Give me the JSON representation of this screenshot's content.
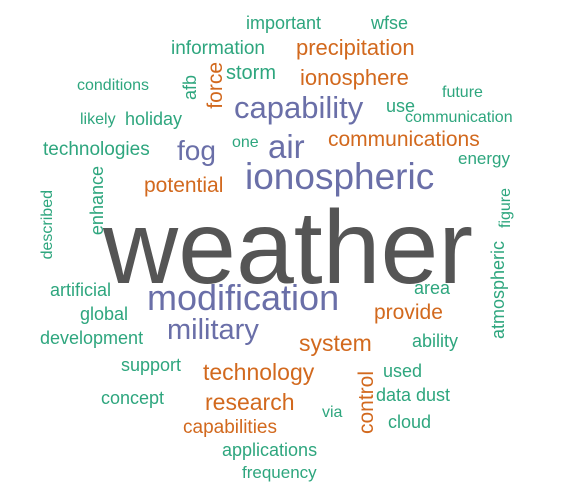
{
  "palette": {
    "dark_gray": "#555555",
    "slate_blue": "#6a6fa8",
    "orange": "#d2691e",
    "teal": "#2ea67e"
  },
  "words": [
    {
      "text": "weather",
      "color": "dark_gray",
      "vertical": false
    },
    {
      "text": "modification",
      "color": "slate_blue",
      "vertical": false
    },
    {
      "text": "ionospheric",
      "color": "slate_blue",
      "vertical": false
    },
    {
      "text": "military",
      "color": "slate_blue",
      "vertical": false
    },
    {
      "text": "capability",
      "color": "slate_blue",
      "vertical": false
    },
    {
      "text": "air",
      "color": "slate_blue",
      "vertical": false
    },
    {
      "text": "fog",
      "color": "slate_blue",
      "vertical": false
    },
    {
      "text": "communications",
      "color": "orange",
      "vertical": false
    },
    {
      "text": "precipitation",
      "color": "orange",
      "vertical": false
    },
    {
      "text": "ionosphere",
      "color": "orange",
      "vertical": false
    },
    {
      "text": "potential",
      "color": "orange",
      "vertical": false
    },
    {
      "text": "force",
      "color": "orange",
      "vertical": true
    },
    {
      "text": "system",
      "color": "orange",
      "vertical": false
    },
    {
      "text": "technology",
      "color": "orange",
      "vertical": false
    },
    {
      "text": "research",
      "color": "orange",
      "vertical": false
    },
    {
      "text": "control",
      "color": "orange",
      "vertical": true
    },
    {
      "text": "provide",
      "color": "orange",
      "vertical": false
    },
    {
      "text": "capabilities",
      "color": "orange",
      "vertical": false
    },
    {
      "text": "important",
      "color": "teal",
      "vertical": false
    },
    {
      "text": "wfse",
      "color": "teal",
      "vertical": false
    },
    {
      "text": "information",
      "color": "teal",
      "vertical": false
    },
    {
      "text": "storm",
      "color": "teal",
      "vertical": false
    },
    {
      "text": "afb",
      "color": "teal",
      "vertical": true
    },
    {
      "text": "conditions",
      "color": "teal",
      "vertical": false
    },
    {
      "text": "future",
      "color": "teal",
      "vertical": false
    },
    {
      "text": "likely",
      "color": "teal",
      "vertical": false
    },
    {
      "text": "holiday",
      "color": "teal",
      "vertical": false
    },
    {
      "text": "use",
      "color": "teal",
      "vertical": false
    },
    {
      "text": "communication",
      "color": "teal",
      "vertical": false
    },
    {
      "text": "one",
      "color": "teal",
      "vertical": false
    },
    {
      "text": "technologies",
      "color": "teal",
      "vertical": false
    },
    {
      "text": "energy",
      "color": "teal",
      "vertical": false
    },
    {
      "text": "enhance",
      "color": "teal",
      "vertical": true
    },
    {
      "text": "described",
      "color": "teal",
      "vertical": true
    },
    {
      "text": "figure",
      "color": "teal",
      "vertical": true
    },
    {
      "text": "atmospheric",
      "color": "teal",
      "vertical": true
    },
    {
      "text": "artificial",
      "color": "teal",
      "vertical": false
    },
    {
      "text": "area",
      "color": "teal",
      "vertical": false
    },
    {
      "text": "global",
      "color": "teal",
      "vertical": false
    },
    {
      "text": "development",
      "color": "teal",
      "vertical": false
    },
    {
      "text": "ability",
      "color": "teal",
      "vertical": false
    },
    {
      "text": "support",
      "color": "teal",
      "vertical": false
    },
    {
      "text": "used",
      "color": "teal",
      "vertical": false
    },
    {
      "text": "data",
      "color": "teal",
      "vertical": false
    },
    {
      "text": "dust",
      "color": "teal",
      "vertical": false
    },
    {
      "text": "concept",
      "color": "teal",
      "vertical": false
    },
    {
      "text": "via",
      "color": "teal",
      "vertical": false
    },
    {
      "text": "cloud",
      "color": "teal",
      "vertical": false
    },
    {
      "text": "applications",
      "color": "teal",
      "vertical": false
    },
    {
      "text": "frequency",
      "color": "teal",
      "vertical": false
    }
  ]
}
